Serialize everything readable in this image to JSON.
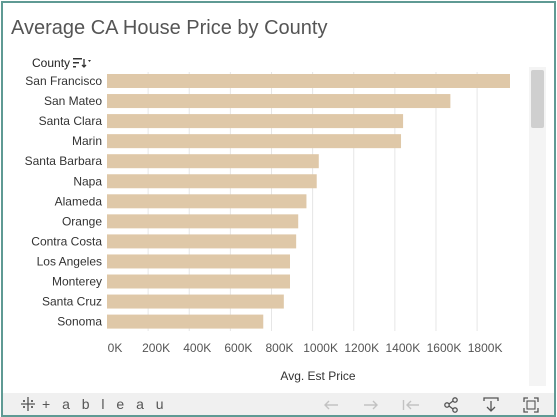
{
  "title": "Average CA House Price by County",
  "field_header": {
    "label": "County"
  },
  "chart_data": {
    "type": "bar",
    "orientation": "horizontal",
    "categories": [
      "San Francisco",
      "San Mateo",
      "Santa Clara",
      "Marin",
      "Santa Barbara",
      "Napa",
      "Alameda",
      "Orange",
      "Contra Costa",
      "Los Angeles",
      "Monterey",
      "Santa Cruz",
      "Sonoma"
    ],
    "values": [
      1960000,
      1670000,
      1440000,
      1430000,
      1030000,
      1020000,
      970000,
      930000,
      920000,
      890000,
      890000,
      860000,
      760000
    ],
    "xlabel": "Avg. Est Price",
    "xlim": [
      0,
      2050000
    ],
    "xticks": [
      0,
      200000,
      400000,
      600000,
      800000,
      1000000,
      1200000,
      1400000,
      1600000,
      1800000
    ],
    "xtick_labels": [
      "0K",
      "200K",
      "400K",
      "600K",
      "800K",
      "1000K",
      "1200K",
      "1400K",
      "1600K",
      "1800K"
    ],
    "bar_color": "#dfc8a8",
    "grid": "vertical"
  },
  "toolbar": {
    "logo_text": "+ a b l e a u",
    "icons": [
      "undo-icon",
      "redo-icon",
      "revert-icon",
      "share-icon",
      "download-icon",
      "fullscreen-icon"
    ]
  },
  "colors": {
    "border": "#5f9a94",
    "title": "#555555",
    "grid": "#e6e6e6"
  }
}
